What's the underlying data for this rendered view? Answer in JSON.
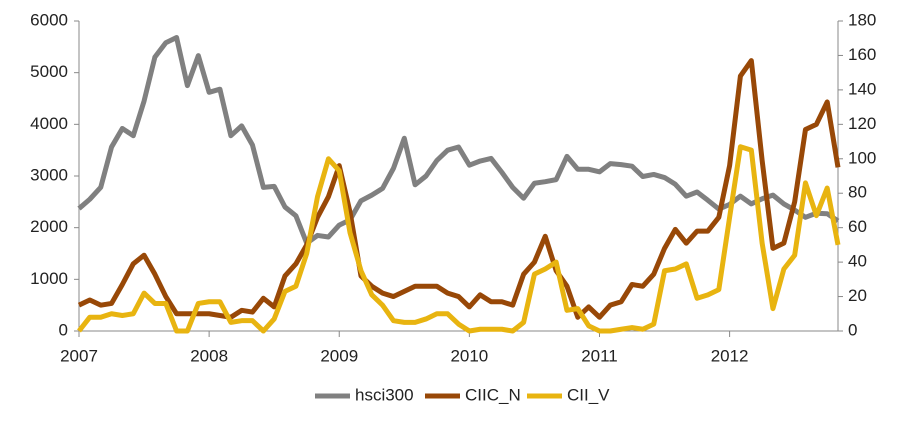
{
  "chart_data": {
    "type": "line",
    "x": [
      2007,
      2007.083,
      2007.167,
      2007.25,
      2007.333,
      2007.417,
      2007.5,
      2007.583,
      2007.667,
      2007.75,
      2007.833,
      2007.917,
      2008,
      2008.083,
      2008.167,
      2008.25,
      2008.333,
      2008.417,
      2008.5,
      2008.583,
      2008.667,
      2008.75,
      2008.833,
      2008.917,
      2009,
      2009.083,
      2009.167,
      2009.25,
      2009.333,
      2009.417,
      2009.5,
      2009.583,
      2009.667,
      2009.75,
      2009.833,
      2009.917,
      2010,
      2010.083,
      2010.167,
      2010.25,
      2010.333,
      2010.417,
      2010.5,
      2010.583,
      2010.667,
      2010.75,
      2010.833,
      2010.917,
      2011,
      2011.083,
      2011.167,
      2011.25,
      2011.333,
      2011.417,
      2011.5,
      2011.583,
      2011.667,
      2011.75,
      2011.833,
      2011.917,
      2012,
      2012.083,
      2012.167,
      2012.25,
      2012.333,
      2012.417,
      2012.5,
      2012.583,
      2012.667,
      2012.75,
      2012.833
    ],
    "series": [
      {
        "name": "hsci300",
        "color": "#808080",
        "values": [
          2370,
          2550,
          2780,
          3560,
          3920,
          3780,
          4450,
          5300,
          5580,
          5680,
          4750,
          5330,
          4620,
          4680,
          3780,
          3970,
          3600,
          2780,
          2800,
          2400,
          2230,
          1700,
          1850,
          1820,
          2050,
          2150,
          2520,
          2630,
          2760,
          3150,
          3730,
          2830,
          3000,
          3300,
          3500,
          3560,
          3210,
          3290,
          3340,
          3070,
          2780,
          2570,
          2860,
          2890,
          2930,
          3380,
          3130,
          3130,
          3080,
          3240,
          3220,
          3190,
          2990,
          3030,
          2970,
          2840,
          2610,
          2690,
          2530,
          2360,
          2450,
          2610,
          2460,
          2560,
          2630,
          2460,
          2340,
          2200,
          2280,
          2270,
          2130
        ]
      },
      {
        "name": "CIIC_N",
        "color": "#984807",
        "axis": "y2",
        "values": [
          15,
          18,
          15,
          16,
          27,
          39,
          44,
          33,
          20,
          10,
          10,
          10,
          10,
          9,
          8,
          12,
          11,
          19,
          14,
          32,
          39,
          50,
          66,
          78,
          96,
          69,
          32,
          26,
          22,
          20,
          23,
          26,
          26,
          26,
          22,
          20,
          14,
          21,
          17,
          17,
          15,
          33,
          40,
          55,
          35,
          26,
          8,
          14,
          8,
          15,
          17,
          27,
          26,
          33,
          48,
          59,
          51,
          58,
          58,
          66,
          96,
          148,
          157,
          99,
          48,
          51,
          75,
          117,
          120,
          133,
          95
        ]
      },
      {
        "name": "CII_V",
        "color": "#e8b410",
        "axis": "y2",
        "values": [
          0,
          8,
          8,
          10,
          9,
          10,
          22,
          16,
          16,
          0,
          0,
          16,
          17,
          17,
          5,
          6,
          6,
          0,
          7,
          23,
          26,
          45,
          78,
          100,
          93,
          57,
          35,
          21,
          15,
          6,
          5,
          5,
          7,
          10,
          10,
          4,
          0,
          1,
          1,
          1,
          0,
          5,
          33,
          36,
          40,
          12,
          13,
          3,
          0,
          0,
          1,
          2,
          1,
          4,
          35,
          36,
          39,
          19,
          21,
          24,
          66,
          107,
          105,
          51,
          13,
          36,
          44,
          86,
          67,
          83,
          50
        ]
      }
    ],
    "xlim": [
      2007,
      2012.833
    ],
    "xticks": [
      2007,
      2008,
      2009,
      2010,
      2011,
      2012
    ],
    "ylim": [
      0,
      6000
    ],
    "yticks": [
      0,
      1000,
      2000,
      3000,
      4000,
      5000,
      6000
    ],
    "y2lim": [
      0,
      180
    ],
    "y2ticks": [
      0,
      20,
      40,
      60,
      80,
      100,
      120,
      140,
      160,
      180
    ],
    "legend": "bottom"
  }
}
